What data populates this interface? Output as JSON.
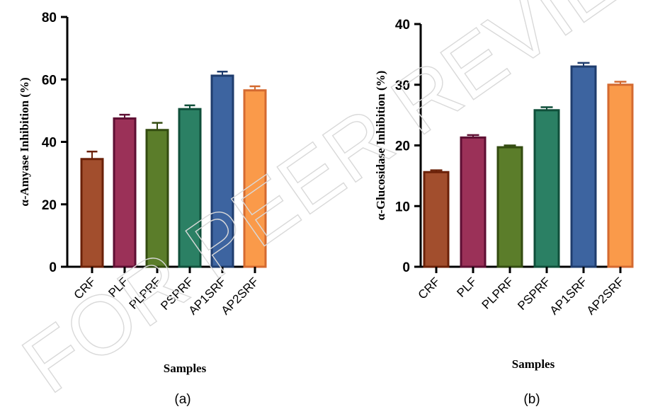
{
  "watermark": "FOR PEER REVIEW",
  "chart_data": [
    {
      "type": "bar",
      "panel_label": "(a)",
      "ylabel": "α-Amyase Inhibition (%)",
      "xlabel": "Samples",
      "ylim": [
        0,
        80
      ],
      "yticks": [
        "0",
        "20",
        "40",
        "60",
        "80"
      ],
      "categories": [
        "CRF",
        "PLF",
        "PLPRF",
        "PSPRF",
        "AP1SRF",
        "AP2SRF"
      ],
      "values": [
        34.5,
        47.5,
        43.8,
        50.5,
        61.2,
        56.5
      ],
      "errors": [
        2.4,
        1.2,
        2.3,
        1.2,
        1.3,
        1.3
      ],
      "colors": [
        "#a24e2d",
        "#9b3158",
        "#5b7d2a",
        "#2b8064",
        "#3d64a0",
        "#fa9a4a"
      ],
      "edge_colors": [
        "#6b2108",
        "#5e0f33",
        "#334c10",
        "#0f4f3a",
        "#1f3d6e",
        "#d46a30"
      ]
    },
    {
      "type": "bar",
      "panel_label": "(b)",
      "ylabel": "α-Glucosidase Inhibition (%)",
      "xlabel": "Samples",
      "ylim": [
        0,
        40
      ],
      "yticks": [
        "0",
        "10",
        "20",
        "30",
        "40"
      ],
      "categories": [
        "CRF",
        "PLF",
        "PLPRF",
        "PSPRF",
        "AP1SRF",
        "AP2SRF"
      ],
      "values": [
        15.6,
        21.3,
        19.7,
        25.8,
        33.0,
        30.0
      ],
      "errors": [
        0.3,
        0.4,
        0.3,
        0.5,
        0.6,
        0.5
      ],
      "colors": [
        "#a24e2d",
        "#9b3158",
        "#5b7d2a",
        "#2b8064",
        "#3d64a0",
        "#fa9a4a"
      ],
      "edge_colors": [
        "#6b2108",
        "#5e0f33",
        "#334c10",
        "#0f4f3a",
        "#1f3d6e",
        "#d46a30"
      ]
    }
  ]
}
